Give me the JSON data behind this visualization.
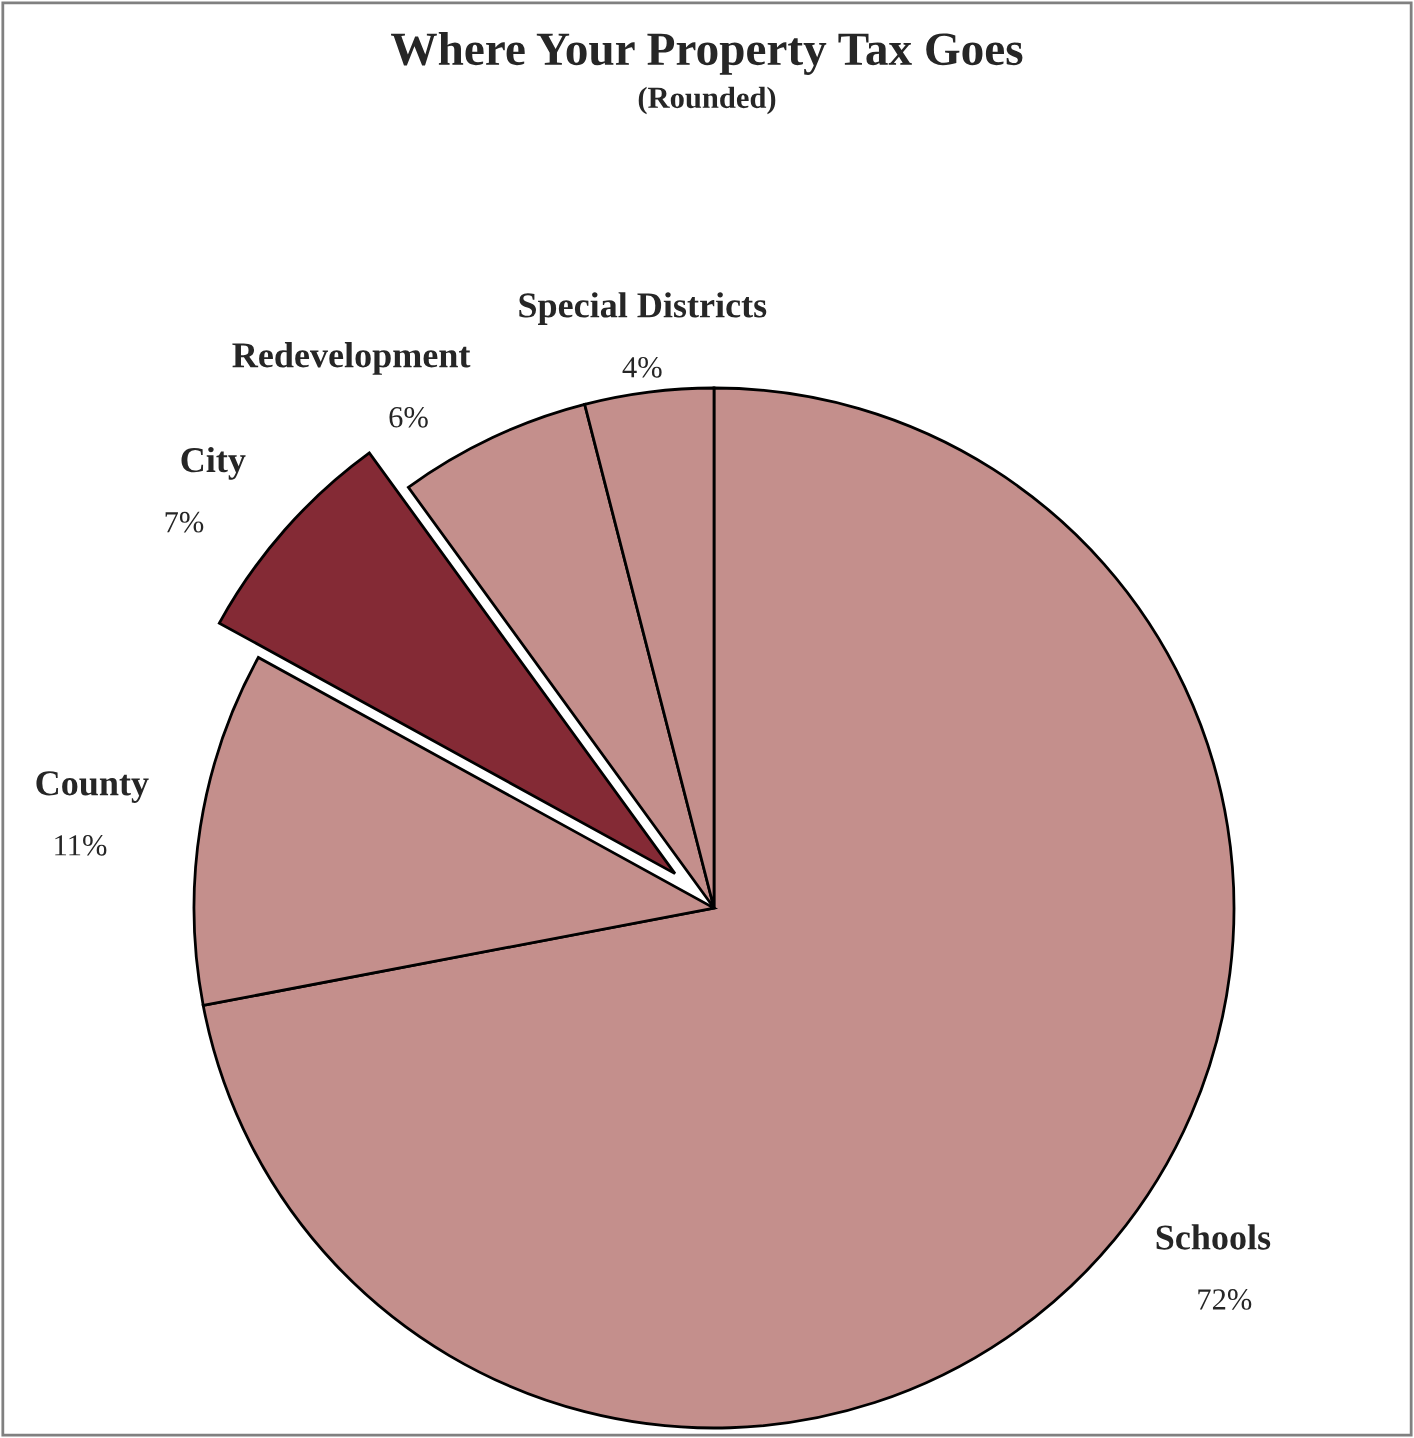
{
  "chart_data": {
    "type": "pie",
    "title": "Where Your Property Tax Goes",
    "subtitle": "(Rounded)",
    "categories": [
      "Schools",
      "County",
      "City",
      "Redevelopment",
      "Special Districts"
    ],
    "values": [
      72,
      11,
      7,
      6,
      4
    ],
    "colors": [
      "#c48f8c",
      "#c48f8c",
      "#842a35",
      "#c48f8c",
      "#c48f8c"
    ],
    "value_labels": [
      "72%",
      "11%",
      "7%",
      "6%",
      "4%"
    ],
    "legend": false
  }
}
